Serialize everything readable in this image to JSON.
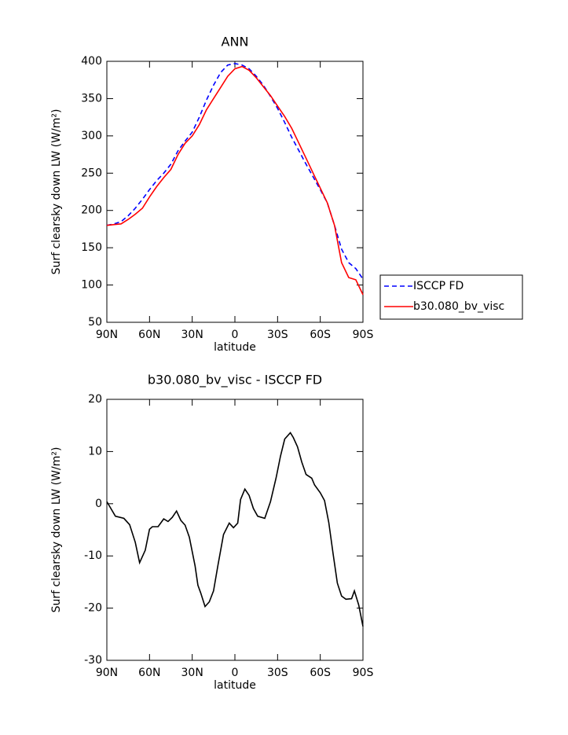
{
  "chart_data": [
    {
      "type": "line",
      "title": "ANN",
      "x_label": "latitude",
      "y_label": "Surf clearsky down LW (W/m²)",
      "x": [
        90,
        85,
        80,
        75,
        70,
        65,
        60,
        55,
        50,
        45,
        40,
        35,
        30,
        25,
        20,
        15,
        10,
        5,
        0,
        -5,
        -10,
        -15,
        -20,
        -25,
        -30,
        -35,
        -40,
        -45,
        -50,
        -55,
        -60,
        -65,
        -70,
        -75,
        -80,
        -85,
        -90
      ],
      "series": [
        {
          "name": "ISCCP FD",
          "color": "#0000ff",
          "linestyle": "dashed",
          "values": [
            180,
            182,
            185,
            193,
            203,
            215,
            228,
            240,
            250,
            262,
            280,
            293,
            305,
            325,
            348,
            368,
            385,
            395,
            397,
            395,
            390,
            380,
            368,
            353,
            337,
            318,
            298,
            280,
            262,
            245,
            228,
            210,
            180,
            148,
            130,
            122,
            108
          ]
        },
        {
          "name": "b30.080_bv_visc",
          "color": "#ff0000",
          "linestyle": "solid",
          "values": [
            180,
            181,
            182,
            188,
            195,
            203,
            218,
            232,
            244,
            255,
            275,
            290,
            300,
            315,
            335,
            350,
            365,
            380,
            390,
            393,
            388,
            378,
            366,
            354,
            340,
            326,
            310,
            290,
            270,
            250,
            230,
            210,
            180,
            130,
            110,
            107,
            87
          ]
        }
      ],
      "xlim": [
        90,
        -90
      ],
      "xticks": [
        {
          "value": 90,
          "label": "90N"
        },
        {
          "value": 60,
          "label": "60N"
        },
        {
          "value": 30,
          "label": "30N"
        },
        0,
        {
          "value": -30,
          "label": "30S"
        },
        {
          "value": -60,
          "label": "60S"
        },
        {
          "value": -90,
          "label": "90S"
        }
      ],
      "ylim": [
        50,
        400
      ],
      "yticks": [
        50,
        100,
        150,
        200,
        250,
        300,
        350,
        400
      ],
      "legend": "right"
    },
    {
      "type": "line",
      "title": "b30.080_bv_visc - ISCCP FD",
      "x_label": "latitude",
      "y_label": "Surf clearsky down LW (W/m²)",
      "x": [
        90,
        84,
        78,
        74,
        70,
        67,
        63,
        60,
        58,
        54,
        50,
        47,
        44,
        41,
        38,
        35,
        32,
        28,
        26,
        24,
        21,
        18,
        15,
        12,
        8,
        4,
        1,
        -2,
        -4,
        -7,
        -10,
        -13,
        -16,
        -21,
        -25,
        -29,
        -32,
        -35,
        -39,
        -41,
        -44,
        -47,
        -50,
        -54,
        -56,
        -60,
        -63,
        -66,
        -69,
        -72,
        -75,
        -78,
        -82,
        -84,
        -87,
        -90
      ],
      "values": [
        0.4,
        -2.4,
        -2.8,
        -4.0,
        -7.4,
        -11.3,
        -8.9,
        -4.9,
        -4.4,
        -4.4,
        -2.9,
        -3.4,
        -2.6,
        -1.4,
        -3.2,
        -4.1,
        -6.4,
        -11.9,
        -15.6,
        -17.1,
        -19.7,
        -18.8,
        -16.7,
        -11.9,
        -5.9,
        -3.7,
        -4.6,
        -3.7,
        0.8,
        2.8,
        1.6,
        -0.9,
        -2.4,
        -2.8,
        0.4,
        5.0,
        9.1,
        12.4,
        13.6,
        12.7,
        10.9,
        8.0,
        5.6,
        4.9,
        3.6,
        2.1,
        0.6,
        -3.6,
        -9.6,
        -15.2,
        -17.7,
        -18.3,
        -18.2,
        -16.7,
        -19.4,
        -23.5
      ],
      "color": "#000000",
      "xlim": [
        90,
        -90
      ],
      "xticks": [
        {
          "value": 90,
          "label": "90N"
        },
        {
          "value": 60,
          "label": "60N"
        },
        {
          "value": 30,
          "label": "30N"
        },
        0,
        {
          "value": -30,
          "label": "30S"
        },
        {
          "value": -60,
          "label": "60S"
        },
        {
          "value": -90,
          "label": "90S"
        }
      ],
      "ylim": [
        -30,
        20
      ],
      "yticks": [
        -30,
        -20,
        -10,
        0,
        10,
        20
      ]
    }
  ]
}
